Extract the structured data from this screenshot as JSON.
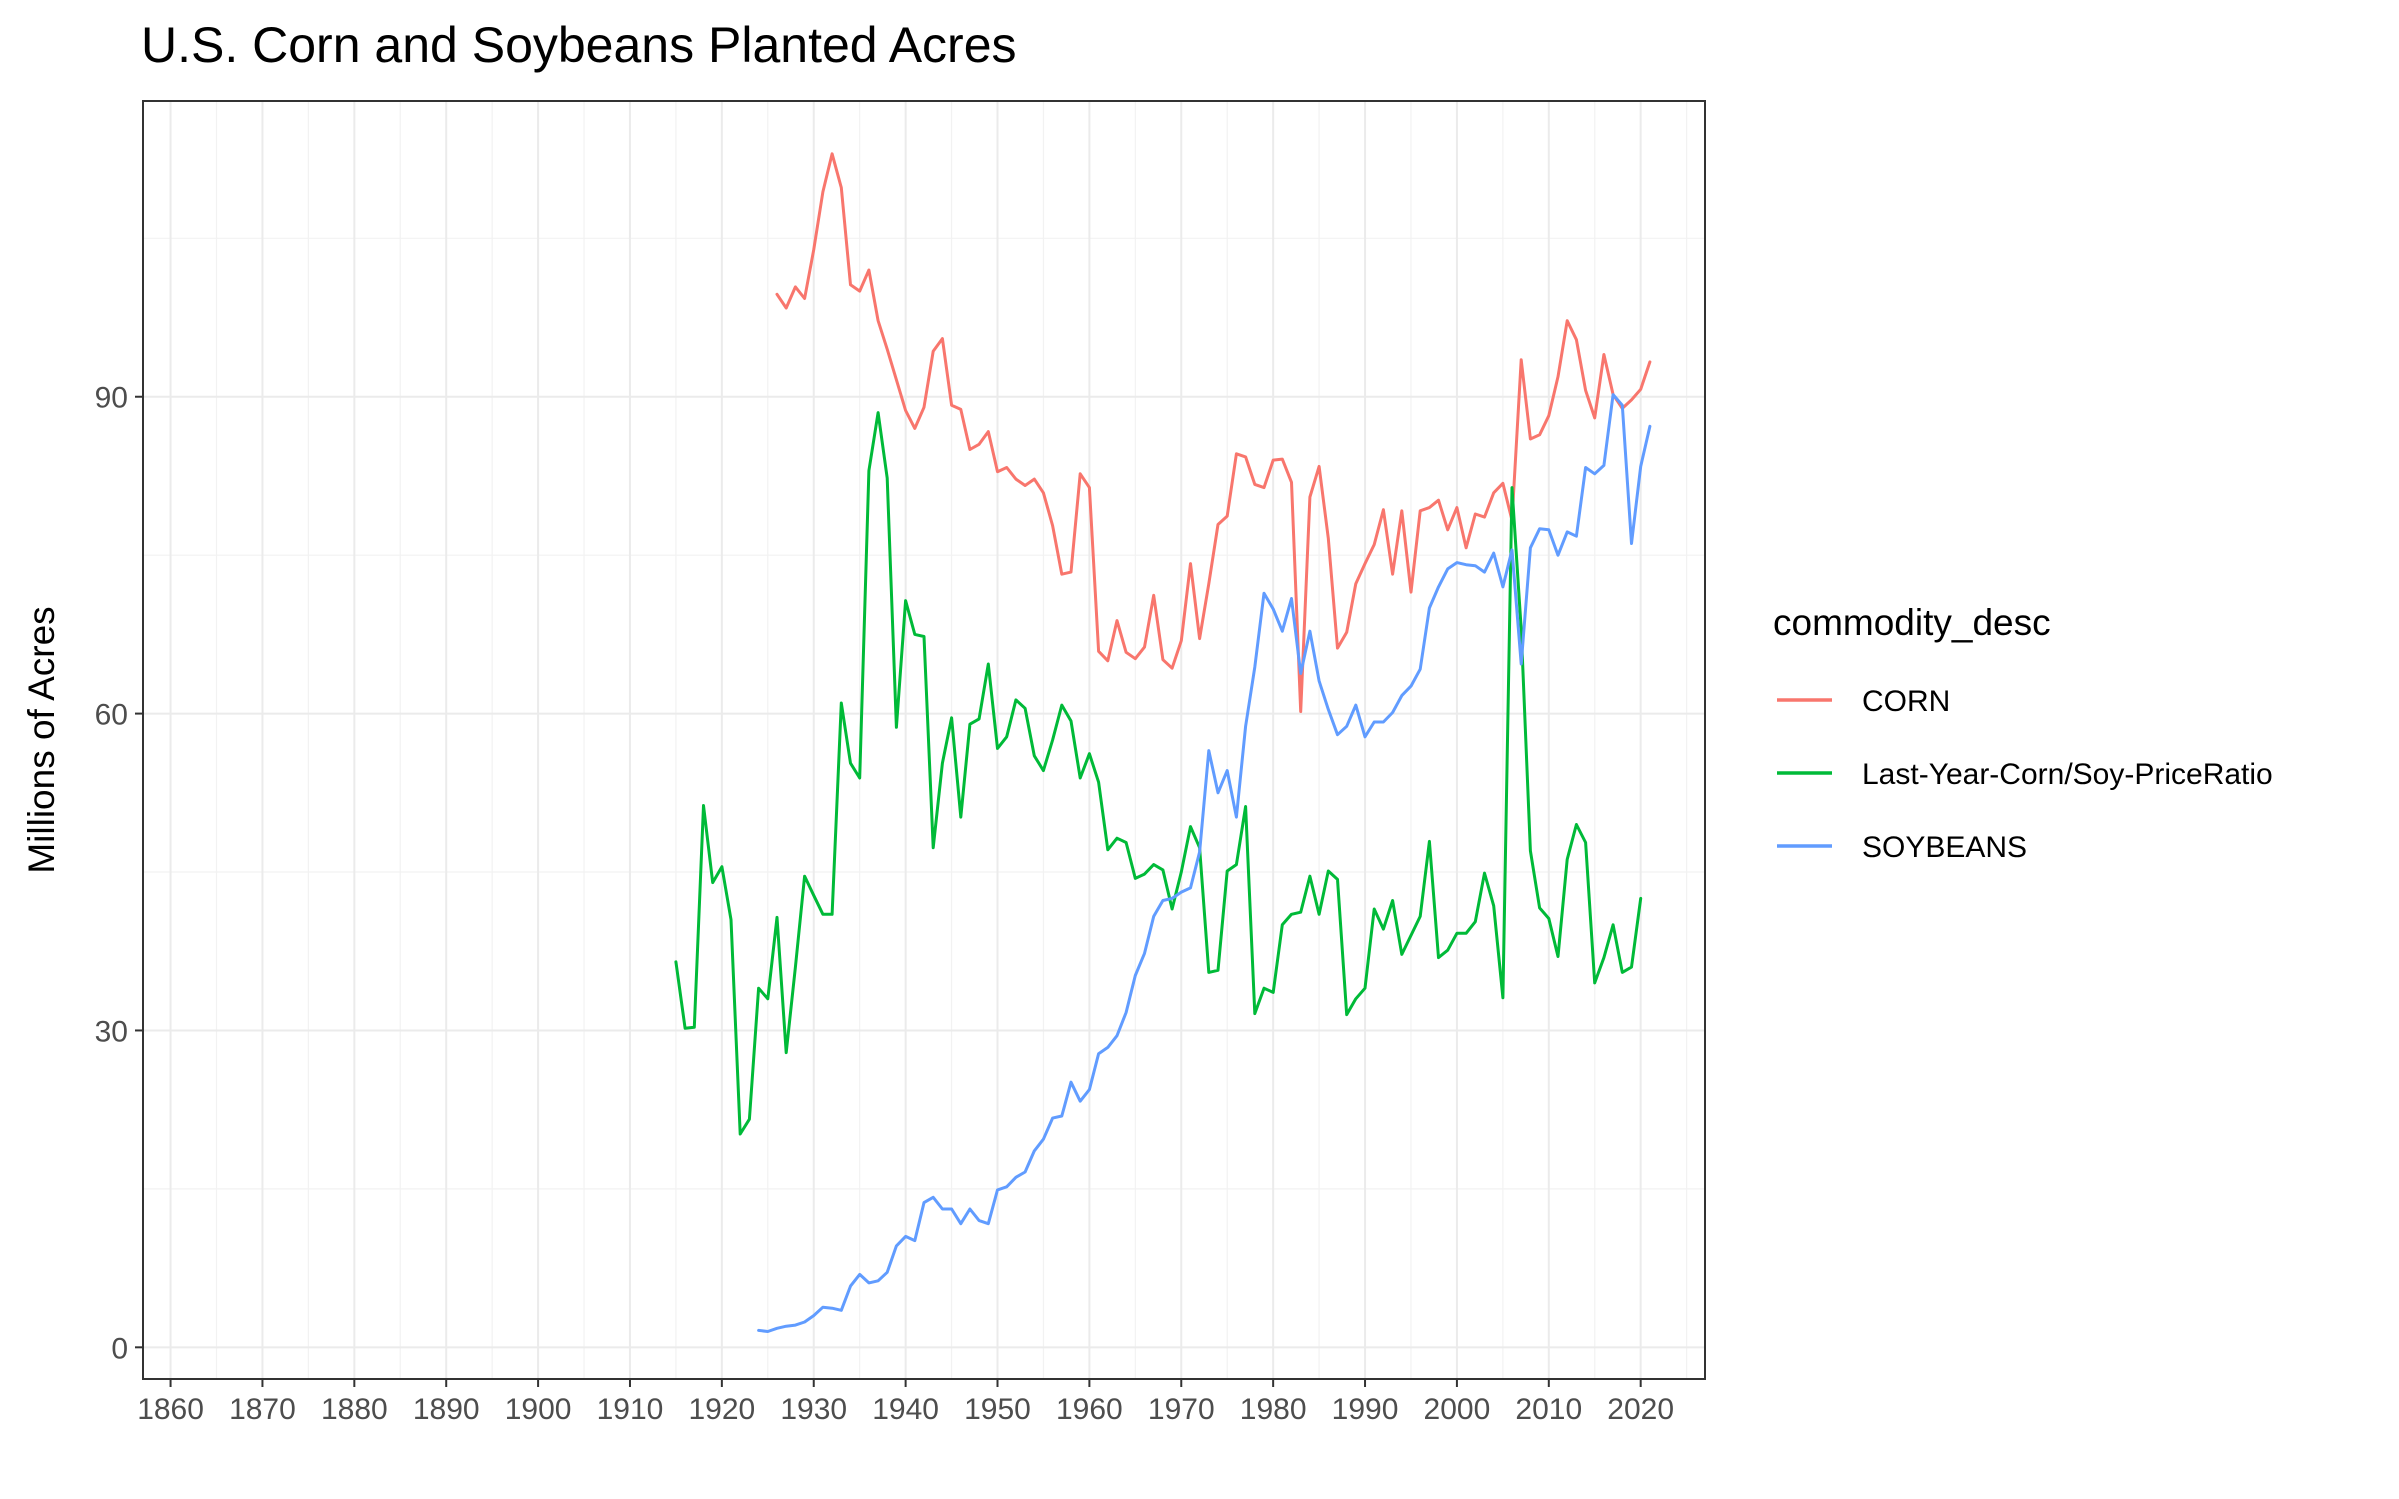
{
  "chart_data": {
    "type": "line",
    "title": "U.S. Corn and Soybeans Planted Acres",
    "xlabel": "",
    "ylabel": "Millions of Acres",
    "xlim": [
      1857,
      2027
    ],
    "ylim": [
      -3,
      118
    ],
    "x_ticks": [
      1860,
      1870,
      1880,
      1890,
      1900,
      1910,
      1920,
      1930,
      1940,
      1950,
      1960,
      1970,
      1980,
      1990,
      2000,
      2010,
      2020
    ],
    "x_tick_labels": [
      "1860",
      "1870",
      "1880",
      "1890",
      "1900",
      "1910",
      "1920",
      "1930",
      "1940",
      "1950",
      "1960",
      "1970",
      "1980",
      "1990",
      "2000",
      "2010",
      "2020"
    ],
    "y_ticks": [
      0,
      30,
      60,
      90
    ],
    "y_tick_labels": [
      "0",
      "30",
      "60",
      "90"
    ],
    "y_minor_ticks": [
      15,
      45,
      75,
      105
    ],
    "grid": true,
    "legend": {
      "title": "commodity_desc",
      "position": "right"
    },
    "series": [
      {
        "name": "CORN",
        "color": "#F8766D",
        "points": [
          [
            1926,
            99.7
          ],
          [
            1927,
            98.4
          ],
          [
            1928,
            100.4
          ],
          [
            1929,
            99.3
          ],
          [
            1930,
            103.9
          ],
          [
            1931,
            109.4
          ],
          [
            1932,
            113.0
          ],
          [
            1933,
            109.8
          ],
          [
            1934,
            100.6
          ],
          [
            1935,
            100.0
          ],
          [
            1936,
            102.0
          ],
          [
            1937,
            97.2
          ],
          [
            1938,
            94.5
          ],
          [
            1939,
            91.6
          ],
          [
            1940,
            88.7
          ],
          [
            1941,
            87.0
          ],
          [
            1942,
            89.0
          ],
          [
            1943,
            94.3
          ],
          [
            1944,
            95.5
          ],
          [
            1945,
            89.2
          ],
          [
            1946,
            88.8
          ],
          [
            1947,
            85.0
          ],
          [
            1948,
            85.5
          ],
          [
            1949,
            86.7
          ],
          [
            1950,
            82.9
          ],
          [
            1951,
            83.3
          ],
          [
            1952,
            82.2
          ],
          [
            1953,
            81.6
          ],
          [
            1954,
            82.2
          ],
          [
            1955,
            80.9
          ],
          [
            1956,
            77.8
          ],
          [
            1957,
            73.2
          ],
          [
            1958,
            73.4
          ],
          [
            1959,
            82.7
          ],
          [
            1960,
            81.4
          ],
          [
            1961,
            65.9
          ],
          [
            1962,
            65.0
          ],
          [
            1963,
            68.8
          ],
          [
            1964,
            65.8
          ],
          [
            1965,
            65.2
          ],
          [
            1966,
            66.3
          ],
          [
            1967,
            71.2
          ],
          [
            1968,
            65.1
          ],
          [
            1969,
            64.3
          ],
          [
            1970,
            66.9
          ],
          [
            1971,
            74.2
          ],
          [
            1972,
            67.1
          ],
          [
            1973,
            72.3
          ],
          [
            1974,
            77.9
          ],
          [
            1975,
            78.7
          ],
          [
            1976,
            84.6
          ],
          [
            1977,
            84.3
          ],
          [
            1978,
            81.7
          ],
          [
            1979,
            81.4
          ],
          [
            1980,
            84.0
          ],
          [
            1981,
            84.1
          ],
          [
            1982,
            81.9
          ],
          [
            1983,
            60.2
          ],
          [
            1984,
            80.5
          ],
          [
            1985,
            83.4
          ],
          [
            1986,
            76.6
          ],
          [
            1987,
            66.2
          ],
          [
            1988,
            67.7
          ],
          [
            1989,
            72.3
          ],
          [
            1990,
            74.2
          ],
          [
            1991,
            76.0
          ],
          [
            1992,
            79.3
          ],
          [
            1993,
            73.2
          ],
          [
            1994,
            79.2
          ],
          [
            1995,
            71.5
          ],
          [
            1996,
            79.2
          ],
          [
            1997,
            79.5
          ],
          [
            1998,
            80.2
          ],
          [
            1999,
            77.4
          ],
          [
            2000,
            79.5
          ],
          [
            2001,
            75.7
          ],
          [
            2002,
            78.9
          ],
          [
            2003,
            78.6
          ],
          [
            2004,
            80.9
          ],
          [
            2005,
            81.8
          ],
          [
            2006,
            78.3
          ],
          [
            2007,
            93.5
          ],
          [
            2008,
            86.0
          ],
          [
            2009,
            86.4
          ],
          [
            2010,
            88.2
          ],
          [
            2011,
            91.9
          ],
          [
            2012,
            97.2
          ],
          [
            2013,
            95.4
          ],
          [
            2014,
            90.6
          ],
          [
            2015,
            88.0
          ],
          [
            2016,
            94.0
          ],
          [
            2017,
            90.2
          ],
          [
            2018,
            88.9
          ],
          [
            2019,
            89.7
          ],
          [
            2020,
            90.7
          ],
          [
            2021,
            93.3
          ]
        ]
      },
      {
        "name": "Last-Year-Corn/Soy-PriceRatio",
        "color": "#00BA38",
        "points": [
          [
            1915,
            36.5
          ],
          [
            1916,
            30.2
          ],
          [
            1917,
            30.3
          ],
          [
            1918,
            51.3
          ],
          [
            1919,
            44.0
          ],
          [
            1920,
            45.5
          ],
          [
            1921,
            40.5
          ],
          [
            1922,
            20.2
          ],
          [
            1923,
            21.6
          ],
          [
            1924,
            34.0
          ],
          [
            1925,
            33.0
          ],
          [
            1926,
            40.7
          ],
          [
            1927,
            27.9
          ],
          [
            1928,
            36.0
          ],
          [
            1929,
            44.6
          ],
          [
            1930,
            42.8
          ],
          [
            1931,
            41.0
          ],
          [
            1932,
            41.0
          ],
          [
            1933,
            61.0
          ],
          [
            1934,
            55.3
          ],
          [
            1935,
            53.9
          ],
          [
            1936,
            83.0
          ],
          [
            1937,
            88.5
          ],
          [
            1938,
            82.3
          ],
          [
            1939,
            58.7
          ],
          [
            1940,
            70.7
          ],
          [
            1941,
            67.5
          ],
          [
            1942,
            67.3
          ],
          [
            1943,
            47.3
          ],
          [
            1944,
            55.3
          ],
          [
            1945,
            59.6
          ],
          [
            1946,
            50.2
          ],
          [
            1947,
            59.0
          ],
          [
            1948,
            59.5
          ],
          [
            1949,
            64.7
          ],
          [
            1950,
            56.7
          ],
          [
            1951,
            57.8
          ],
          [
            1952,
            61.3
          ],
          [
            1953,
            60.5
          ],
          [
            1954,
            56.0
          ],
          [
            1955,
            54.6
          ],
          [
            1956,
            57.5
          ],
          [
            1957,
            60.8
          ],
          [
            1958,
            59.3
          ],
          [
            1959,
            53.9
          ],
          [
            1960,
            56.2
          ],
          [
            1961,
            53.5
          ],
          [
            1962,
            47.1
          ],
          [
            1963,
            48.2
          ],
          [
            1964,
            47.8
          ],
          [
            1965,
            44.4
          ],
          [
            1966,
            44.8
          ],
          [
            1967,
            45.7
          ],
          [
            1968,
            45.2
          ],
          [
            1969,
            41.5
          ],
          [
            1970,
            45.0
          ],
          [
            1971,
            49.3
          ],
          [
            1972,
            47.3
          ],
          [
            1973,
            35.5
          ],
          [
            1974,
            35.7
          ],
          [
            1975,
            45.1
          ],
          [
            1976,
            45.7
          ],
          [
            1977,
            51.2
          ],
          [
            1978,
            31.6
          ],
          [
            1979,
            34.0
          ],
          [
            1980,
            33.6
          ],
          [
            1981,
            40.0
          ],
          [
            1982,
            41.0
          ],
          [
            1983,
            41.2
          ],
          [
            1984,
            44.6
          ],
          [
            1985,
            41.0
          ],
          [
            1986,
            45.1
          ],
          [
            1987,
            44.3
          ],
          [
            1988,
            31.5
          ],
          [
            1989,
            33.0
          ],
          [
            1990,
            34.0
          ],
          [
            1991,
            41.5
          ],
          [
            1992,
            39.6
          ],
          [
            1993,
            42.3
          ],
          [
            1994,
            37.2
          ],
          [
            1995,
            39.0
          ],
          [
            1996,
            40.8
          ],
          [
            1997,
            47.9
          ],
          [
            1998,
            36.9
          ],
          [
            1999,
            37.6
          ],
          [
            2000,
            39.2
          ],
          [
            2001,
            39.2
          ],
          [
            2002,
            40.3
          ],
          [
            2003,
            44.9
          ],
          [
            2004,
            41.8
          ],
          [
            2005,
            33.1
          ],
          [
            2006,
            81.4
          ],
          [
            2007,
            68.0
          ],
          [
            2008,
            47.0
          ],
          [
            2009,
            41.6
          ],
          [
            2010,
            40.6
          ],
          [
            2011,
            37.0
          ],
          [
            2012,
            46.2
          ],
          [
            2013,
            49.5
          ],
          [
            2014,
            47.8
          ],
          [
            2015,
            34.5
          ],
          [
            2016,
            36.9
          ],
          [
            2017,
            40.0
          ],
          [
            2018,
            35.5
          ],
          [
            2019,
            36.0
          ],
          [
            2020,
            42.5
          ]
        ]
      },
      {
        "name": "SOYBEANS",
        "color": "#619CFF",
        "points": [
          [
            1924,
            1.6
          ],
          [
            1925,
            1.5
          ],
          [
            1926,
            1.8
          ],
          [
            1927,
            2.0
          ],
          [
            1928,
            2.1
          ],
          [
            1929,
            2.4
          ],
          [
            1930,
            3.0
          ],
          [
            1931,
            3.8
          ],
          [
            1932,
            3.7
          ],
          [
            1933,
            3.5
          ],
          [
            1934,
            5.8
          ],
          [
            1935,
            6.9
          ],
          [
            1936,
            6.1
          ],
          [
            1937,
            6.3
          ],
          [
            1938,
            7.1
          ],
          [
            1939,
            9.6
          ],
          [
            1940,
            10.5
          ],
          [
            1941,
            10.1
          ],
          [
            1942,
            13.7
          ],
          [
            1943,
            14.2
          ],
          [
            1944,
            13.1
          ],
          [
            1945,
            13.1
          ],
          [
            1946,
            11.7
          ],
          [
            1947,
            13.1
          ],
          [
            1948,
            12.0
          ],
          [
            1949,
            11.7
          ],
          [
            1950,
            14.9
          ],
          [
            1951,
            15.2
          ],
          [
            1952,
            16.1
          ],
          [
            1953,
            16.6
          ],
          [
            1954,
            18.6
          ],
          [
            1955,
            19.7
          ],
          [
            1956,
            21.7
          ],
          [
            1957,
            21.9
          ],
          [
            1958,
            25.1
          ],
          [
            1959,
            23.3
          ],
          [
            1960,
            24.4
          ],
          [
            1961,
            27.8
          ],
          [
            1962,
            28.4
          ],
          [
            1963,
            29.5
          ],
          [
            1964,
            31.7
          ],
          [
            1965,
            35.2
          ],
          [
            1966,
            37.3
          ],
          [
            1967,
            40.8
          ],
          [
            1968,
            42.3
          ],
          [
            1969,
            42.5
          ],
          [
            1970,
            43.1
          ],
          [
            1971,
            43.5
          ],
          [
            1972,
            46.9
          ],
          [
            1973,
            56.5
          ],
          [
            1974,
            52.5
          ],
          [
            1975,
            54.6
          ],
          [
            1976,
            50.2
          ],
          [
            1977,
            58.8
          ],
          [
            1978,
            64.4
          ],
          [
            1979,
            71.4
          ],
          [
            1980,
            69.9
          ],
          [
            1981,
            67.8
          ],
          [
            1982,
            70.9
          ],
          [
            1983,
            63.8
          ],
          [
            1984,
            67.8
          ],
          [
            1985,
            63.1
          ],
          [
            1986,
            60.4
          ],
          [
            1987,
            58.0
          ],
          [
            1988,
            58.8
          ],
          [
            1989,
            60.8
          ],
          [
            1990,
            57.8
          ],
          [
            1991,
            59.2
          ],
          [
            1992,
            59.2
          ],
          [
            1993,
            60.1
          ],
          [
            1994,
            61.7
          ],
          [
            1995,
            62.6
          ],
          [
            1996,
            64.2
          ],
          [
            1997,
            70.0
          ],
          [
            1998,
            72.0
          ],
          [
            1999,
            73.7
          ],
          [
            2000,
            74.3
          ],
          [
            2001,
            74.1
          ],
          [
            2002,
            74.0
          ],
          [
            2003,
            73.4
          ],
          [
            2004,
            75.2
          ],
          [
            2005,
            72.0
          ],
          [
            2006,
            75.5
          ],
          [
            2007,
            64.7
          ],
          [
            2008,
            75.7
          ],
          [
            2009,
            77.5
          ],
          [
            2010,
            77.4
          ],
          [
            2011,
            75.0
          ],
          [
            2012,
            77.2
          ],
          [
            2013,
            76.8
          ],
          [
            2014,
            83.3
          ],
          [
            2015,
            82.7
          ],
          [
            2016,
            83.5
          ],
          [
            2017,
            90.2
          ],
          [
            2018,
            89.2
          ],
          [
            2019,
            76.1
          ],
          [
            2020,
            83.4
          ],
          [
            2021,
            87.2
          ]
        ]
      }
    ]
  }
}
